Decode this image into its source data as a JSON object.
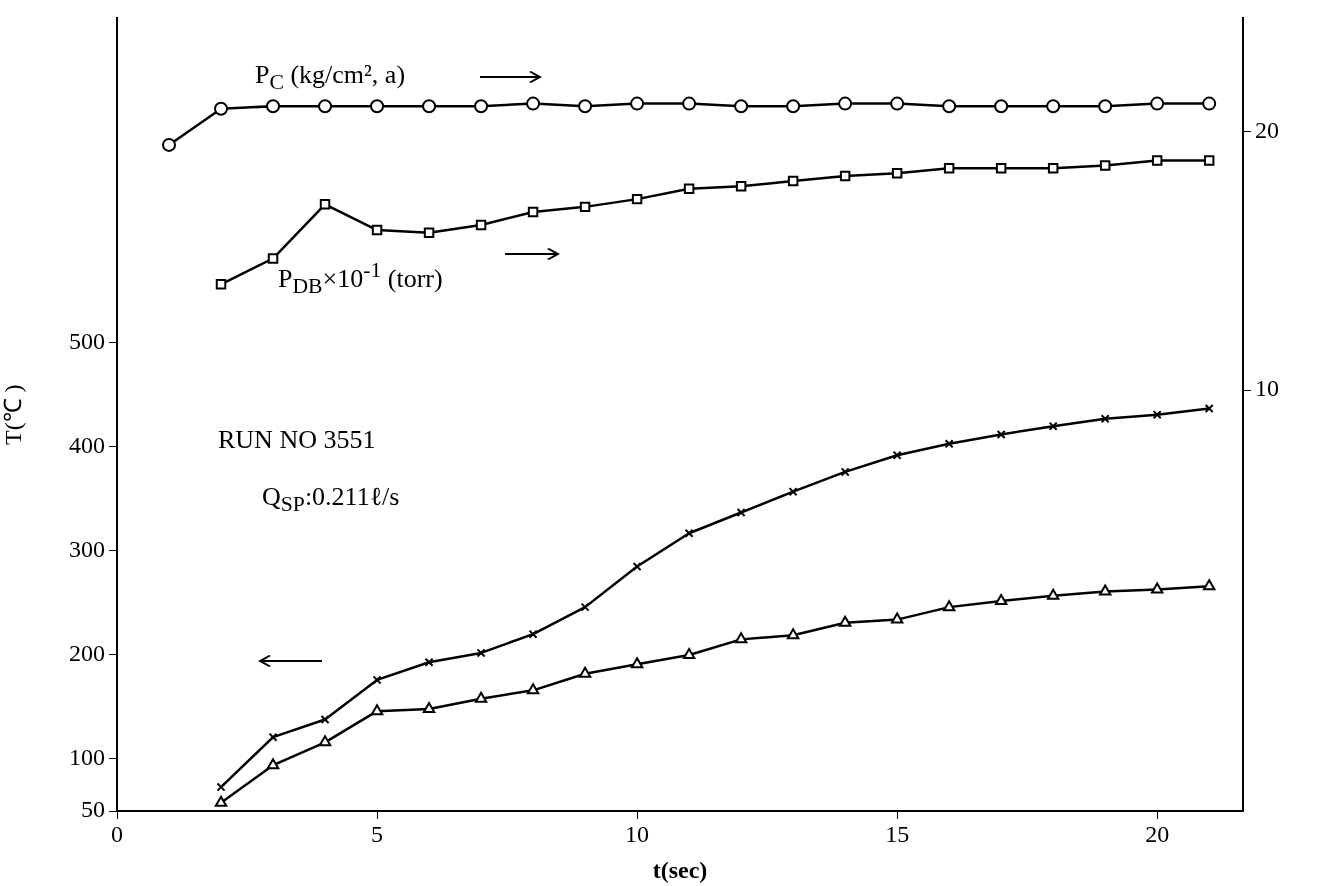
{
  "chart_data": {
    "type": "line",
    "xlabel": "t(sec)",
    "ylabel": "T(℃ )",
    "xlim": [
      0,
      21.65
    ],
    "xticks": [
      0,
      5,
      10,
      15,
      20
    ],
    "ylim": [
      50,
      812
    ],
    "yticks": [
      50,
      100,
      200,
      300,
      400,
      500
    ],
    "y2lim": [
      -6.3,
      24.4
    ],
    "y2ticks": [
      10,
      20
    ],
    "grid": false,
    "legend": false,
    "annotations": [
      "RUN NO 3551",
      "Q$_{SP}$:0.211ℓ/s"
    ],
    "series": [
      {
        "name": "P$_{C}$ (kg/cm², a)",
        "axis": "y2",
        "color": "#000000",
        "marker": "circle",
        "x": [
          1,
          2,
          3,
          4,
          5,
          6,
          7,
          8,
          9,
          10,
          11,
          12,
          13,
          14,
          15,
          16,
          17,
          18,
          19,
          20,
          21
        ],
        "values": [
          19.5,
          20.9,
          21.0,
          21.0,
          21.0,
          21.0,
          21.0,
          21.1,
          21.0,
          21.1,
          21.1,
          21.0,
          21.0,
          21.1,
          21.1,
          21.0,
          21.0,
          21.0,
          21.0,
          21.1,
          21.1
        ]
      },
      {
        "name": "P$_{DB}$×10$^{-1}$ (torr)",
        "axis": "y2",
        "color": "#000000",
        "marker": "square",
        "x": [
          2,
          3,
          4,
          5,
          6,
          7,
          8,
          9,
          10,
          11,
          12,
          13,
          14,
          15,
          16,
          17,
          18,
          19,
          20,
          21
        ],
        "values": [
          14.1,
          15.1,
          17.2,
          16.2,
          16.1,
          16.4,
          16.9,
          17.1,
          17.4,
          17.8,
          17.9,
          18.1,
          18.3,
          18.4,
          18.6,
          18.6,
          18.6,
          18.7,
          18.9,
          18.9
        ]
      },
      {
        "color": "#000000",
        "marker": "cross",
        "x": [
          2,
          3,
          4,
          5,
          6,
          7,
          8,
          9,
          10,
          11,
          12,
          13,
          14,
          15,
          16,
          17,
          18,
          19,
          20,
          21
        ],
        "values": [
          73,
          121,
          138,
          176,
          193,
          202,
          220,
          246,
          285,
          317,
          337,
          357,
          376,
          392,
          403,
          412,
          420,
          427,
          431,
          437
        ]
      },
      {
        "color": "#000000",
        "marker": "triangle",
        "x": [
          2,
          3,
          4,
          5,
          6,
          7,
          8,
          9,
          10,
          11,
          12,
          13,
          14,
          15,
          16,
          17,
          18,
          19,
          20,
          21
        ],
        "values": [
          58,
          94,
          116,
          146,
          148,
          158,
          166,
          182,
          191,
          200,
          215,
          219,
          231,
          234,
          246,
          252,
          257,
          261,
          263,
          266
        ]
      }
    ]
  }
}
